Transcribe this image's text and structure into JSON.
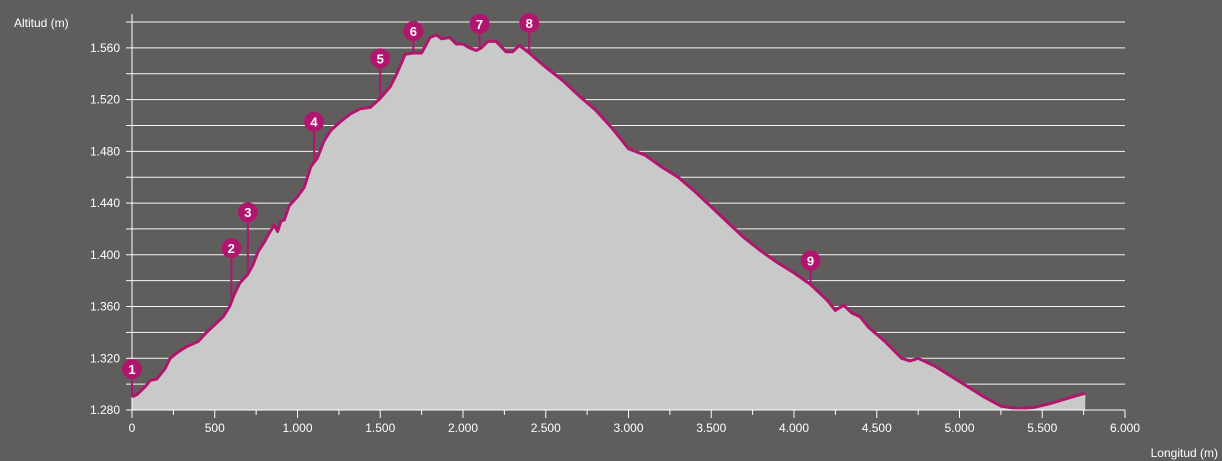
{
  "chart_data": {
    "type": "area",
    "ylabel": "Altitud (m)",
    "xlabel": "Longitud (m)",
    "xlim": [
      0,
      6000
    ],
    "ylim": [
      1280,
      1580
    ],
    "x_ticks": [
      0,
      500,
      1000,
      1500,
      2000,
      2500,
      3000,
      3500,
      4000,
      4500,
      5000,
      5500,
      6000
    ],
    "x_tick_labels": [
      "0",
      "500",
      "1.000",
      "1.500",
      "2.000",
      "2.500",
      "3.000",
      "3.500",
      "4.000",
      "4.500",
      "5.000",
      "5.500",
      "6.000"
    ],
    "y_ticks": [
      1280,
      1320,
      1360,
      1400,
      1440,
      1480,
      1520,
      1560
    ],
    "y_tick_labels": [
      "1.280",
      "1.320",
      "1.360",
      "1.400",
      "1.440",
      "1.480",
      "1.520",
      "1.560"
    ],
    "grid": true,
    "fill_color": "#c9c9c9",
    "line_color": "#b0166e",
    "background_color": "#5f5e5c",
    "profile": [
      [
        0,
        1290
      ],
      [
        30,
        1292
      ],
      [
        80,
        1298
      ],
      [
        110,
        1303
      ],
      [
        150,
        1304
      ],
      [
        200,
        1312
      ],
      [
        230,
        1320
      ],
      [
        280,
        1325
      ],
      [
        330,
        1329
      ],
      [
        400,
        1333
      ],
      [
        450,
        1340
      ],
      [
        500,
        1346
      ],
      [
        550,
        1352
      ],
      [
        590,
        1360
      ],
      [
        620,
        1370
      ],
      [
        650,
        1378
      ],
      [
        700,
        1385
      ],
      [
        730,
        1392
      ],
      [
        760,
        1402
      ],
      [
        800,
        1410
      ],
      [
        830,
        1417
      ],
      [
        860,
        1423
      ],
      [
        880,
        1418
      ],
      [
        900,
        1426
      ],
      [
        920,
        1427
      ],
      [
        950,
        1438
      ],
      [
        1000,
        1445
      ],
      [
        1040,
        1452
      ],
      [
        1080,
        1468
      ],
      [
        1120,
        1475
      ],
      [
        1160,
        1488
      ],
      [
        1200,
        1496
      ],
      [
        1260,
        1503
      ],
      [
        1320,
        1509
      ],
      [
        1380,
        1513
      ],
      [
        1440,
        1514
      ],
      [
        1500,
        1521
      ],
      [
        1560,
        1530
      ],
      [
        1600,
        1540
      ],
      [
        1650,
        1555
      ],
      [
        1700,
        1556
      ],
      [
        1750,
        1556
      ],
      [
        1800,
        1568
      ],
      [
        1840,
        1570
      ],
      [
        1870,
        1567
      ],
      [
        1920,
        1568
      ],
      [
        1960,
        1563
      ],
      [
        2000,
        1563
      ],
      [
        2040,
        1560
      ],
      [
        2080,
        1558
      ],
      [
        2110,
        1560
      ],
      [
        2150,
        1565
      ],
      [
        2200,
        1565
      ],
      [
        2260,
        1557
      ],
      [
        2300,
        1557
      ],
      [
        2340,
        1562
      ],
      [
        2400,
        1556
      ],
      [
        2500,
        1545
      ],
      [
        2600,
        1535
      ],
      [
        2700,
        1523
      ],
      [
        2800,
        1512
      ],
      [
        2900,
        1498
      ],
      [
        3000,
        1482
      ],
      [
        3100,
        1477
      ],
      [
        3200,
        1468
      ],
      [
        3300,
        1460
      ],
      [
        3400,
        1449
      ],
      [
        3500,
        1437
      ],
      [
        3600,
        1425
      ],
      [
        3700,
        1413
      ],
      [
        3800,
        1403
      ],
      [
        3900,
        1394
      ],
      [
        4000,
        1386
      ],
      [
        4100,
        1377
      ],
      [
        4200,
        1365
      ],
      [
        4250,
        1357
      ],
      [
        4300,
        1361
      ],
      [
        4350,
        1355
      ],
      [
        4400,
        1352
      ],
      [
        4450,
        1344
      ],
      [
        4550,
        1333
      ],
      [
        4650,
        1320
      ],
      [
        4700,
        1318
      ],
      [
        4750,
        1320
      ],
      [
        4850,
        1314
      ],
      [
        4950,
        1306
      ],
      [
        5050,
        1298
      ],
      [
        5150,
        1290
      ],
      [
        5250,
        1283
      ],
      [
        5350,
        1281
      ],
      [
        5450,
        1282
      ],
      [
        5550,
        1285
      ],
      [
        5650,
        1289
      ],
      [
        5760,
        1293
      ]
    ],
    "markers": [
      {
        "label": "1",
        "x": 0,
        "y": 1290
      },
      {
        "label": "2",
        "x": 600,
        "y": 1368
      },
      {
        "label": "3",
        "x": 700,
        "y": 1385
      },
      {
        "label": "4",
        "x": 1100,
        "y": 1472
      },
      {
        "label": "5",
        "x": 1500,
        "y": 1521
      },
      {
        "label": "6",
        "x": 1700,
        "y": 1556
      },
      {
        "label": "7",
        "x": 2100,
        "y": 1560
      },
      {
        "label": "8",
        "x": 2400,
        "y": 1556
      },
      {
        "label": "9",
        "x": 4100,
        "y": 1377
      }
    ]
  }
}
